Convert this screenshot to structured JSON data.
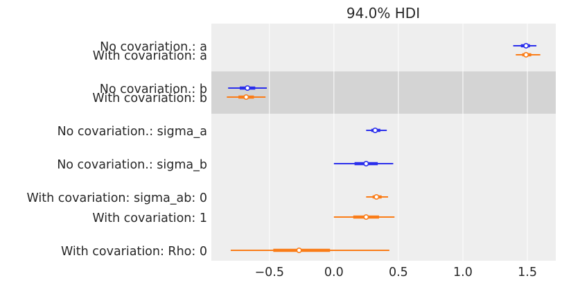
{
  "chart_data": {
    "type": "forest",
    "title": "94.0% HDI",
    "xlabel": "",
    "ylabel": "",
    "xlim": [
      -0.95,
      1.72
    ],
    "grid": true,
    "x_ticks": [
      {
        "value": -0.5,
        "label": "−0.5"
      },
      {
        "value": 0.0,
        "label": "0.0"
      },
      {
        "value": 0.5,
        "label": "0.5"
      },
      {
        "value": 1.0,
        "label": "1.0"
      },
      {
        "value": 1.5,
        "label": "1.5"
      }
    ],
    "series": [
      {
        "name": "No covariation.",
        "color": "#2a2eec"
      },
      {
        "name": "With covariation",
        "color": "#fa7c17"
      }
    ],
    "groups": [
      {
        "label_lines": [
          "No covariation.: a",
          "With covariation: a"
        ],
        "shaded": false
      },
      {
        "label_lines": [
          "No covariation.: b",
          "With covariation: b"
        ],
        "shaded": true
      },
      {
        "label_lines": [
          "No covariation.: sigma_a"
        ],
        "shaded": false
      },
      {
        "label_lines": [
          "No covariation.: sigma_b"
        ],
        "shaded": false
      },
      {
        "label_lines": [
          "With covariation: sigma_ab: 0",
          "With covariation:  1"
        ],
        "shaded": false
      },
      {
        "label_lines": [
          "With covariation: Rho: 0"
        ],
        "shaded": false
      }
    ],
    "intervals": [
      {
        "group": 0,
        "series": 0,
        "hdi_low": 1.39,
        "hdi_high": 1.57,
        "iqr_low": 1.45,
        "iqr_high": 1.52,
        "median": 1.49
      },
      {
        "group": 0,
        "series": 1,
        "hdi_low": 1.41,
        "hdi_high": 1.6,
        "iqr_low": 1.46,
        "iqr_high": 1.53,
        "median": 1.49
      },
      {
        "group": 1,
        "series": 0,
        "hdi_low": -0.82,
        "hdi_high": -0.52,
        "iqr_low": -0.73,
        "iqr_high": -0.61,
        "median": -0.67
      },
      {
        "group": 1,
        "series": 1,
        "hdi_low": -0.83,
        "hdi_high": -0.53,
        "iqr_low": -0.74,
        "iqr_high": -0.62,
        "median": -0.68
      },
      {
        "group": 2,
        "series": 0,
        "hdi_low": 0.25,
        "hdi_high": 0.41,
        "iqr_low": 0.29,
        "iqr_high": 0.36,
        "median": 0.32
      },
      {
        "group": 3,
        "series": 0,
        "hdi_low": 0.0,
        "hdi_high": 0.46,
        "iqr_low": 0.16,
        "iqr_high": 0.34,
        "median": 0.25
      },
      {
        "group": 4,
        "series": 1,
        "hdi_low": 0.25,
        "hdi_high": 0.42,
        "iqr_low": 0.3,
        "iqr_high": 0.37,
        "median": 0.33
      },
      {
        "group": 4,
        "series": 1,
        "hdi_low": 0.0,
        "hdi_high": 0.47,
        "iqr_low": 0.15,
        "iqr_high": 0.35,
        "median": 0.25
      },
      {
        "group": 5,
        "series": 1,
        "hdi_low": -0.8,
        "hdi_high": 0.43,
        "iqr_low": -0.47,
        "iqr_high": -0.03,
        "median": -0.27
      }
    ]
  }
}
